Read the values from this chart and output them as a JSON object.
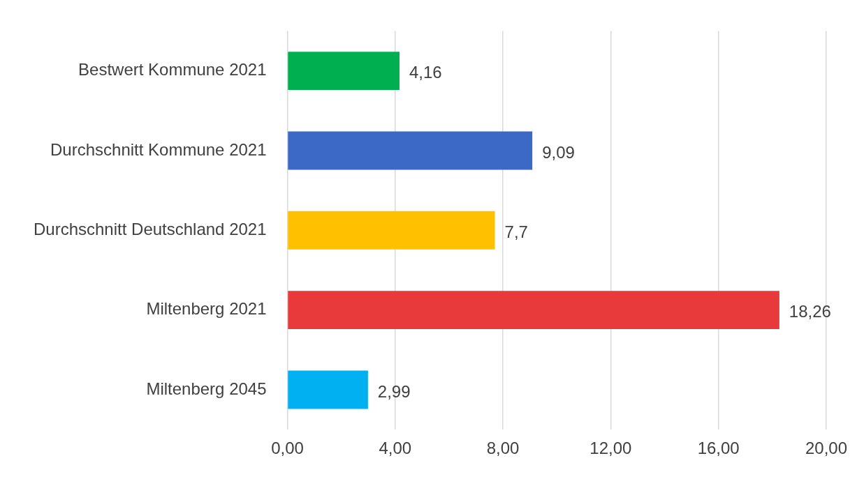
{
  "chart_data": {
    "type": "bar",
    "orientation": "horizontal",
    "categories": [
      "Bestwert Kommune 2021",
      "Durchschnitt Kommune 2021",
      "Durchschnitt Deutschland 2021",
      "Miltenberg 2021",
      "Miltenberg 2045"
    ],
    "values": [
      4.16,
      9.09,
      7.7,
      18.26,
      2.99
    ],
    "colors": [
      "#00b050",
      "#3d69c6",
      "#ffc000",
      "#e83a3a",
      "#00b0f0"
    ],
    "value_labels": [
      "4,16",
      "9,09",
      "7,7",
      "18,26",
      "2,99"
    ],
    "xlim": [
      0,
      20
    ],
    "xticks": [
      {
        "value": 0,
        "label": "0,00"
      },
      {
        "value": 4,
        "label": "4,00"
      },
      {
        "value": 8,
        "label": "8,00"
      },
      {
        "value": 12,
        "label": "12,00"
      },
      {
        "value": 16,
        "label": "16,00"
      },
      {
        "value": 20,
        "label": "20,00"
      }
    ],
    "grid": "x",
    "legend": false
  }
}
